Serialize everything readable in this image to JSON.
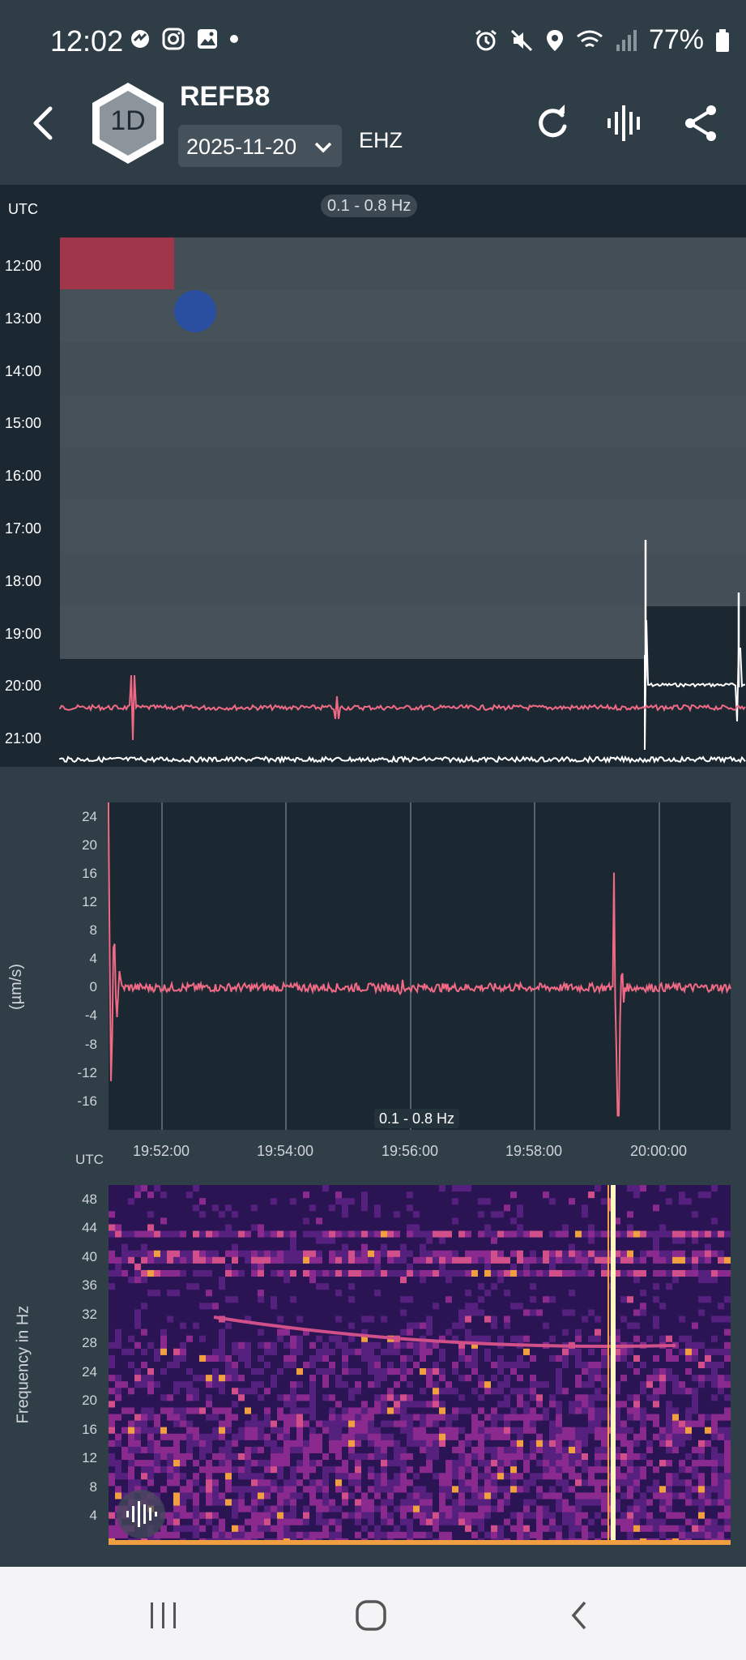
{
  "status_bar": {
    "time": "12:02",
    "battery": "77%"
  },
  "app_bar": {
    "badge": "1D",
    "station": "REFB8",
    "date": "2025-11-20",
    "channel": "EHZ"
  },
  "helicorder": {
    "utc_label": "UTC",
    "filter": "0.1 - 0.8 Hz",
    "hours": [
      "12:00",
      "13:00",
      "14:00",
      "15:00",
      "16:00",
      "17:00",
      "18:00",
      "19:00",
      "20:00",
      "21:00"
    ]
  },
  "seismogram": {
    "y_title": "(µm/s)",
    "y_ticks": [
      "24",
      "20",
      "16",
      "12",
      "8",
      "4",
      "0",
      "-4",
      "-8",
      "-12",
      "-16"
    ],
    "x_ticks": [
      "19:52:00",
      "19:54:00",
      "19:56:00",
      "19:58:00",
      "20:00:00"
    ],
    "utc_label": "UTC",
    "filter": "0.1 - 0.8 Hz"
  },
  "spectrogram": {
    "y_title": "Frequency in Hz",
    "y_ticks": [
      "48",
      "44",
      "40",
      "36",
      "32",
      "28",
      "24",
      "20",
      "16",
      "12",
      "8",
      "4"
    ]
  },
  "colors": {
    "accent_event_red": "#a0364a",
    "accent_event_blue": "#2a4fa0",
    "trace_pink": "#f06a85",
    "trace_white": "#ffffff"
  }
}
